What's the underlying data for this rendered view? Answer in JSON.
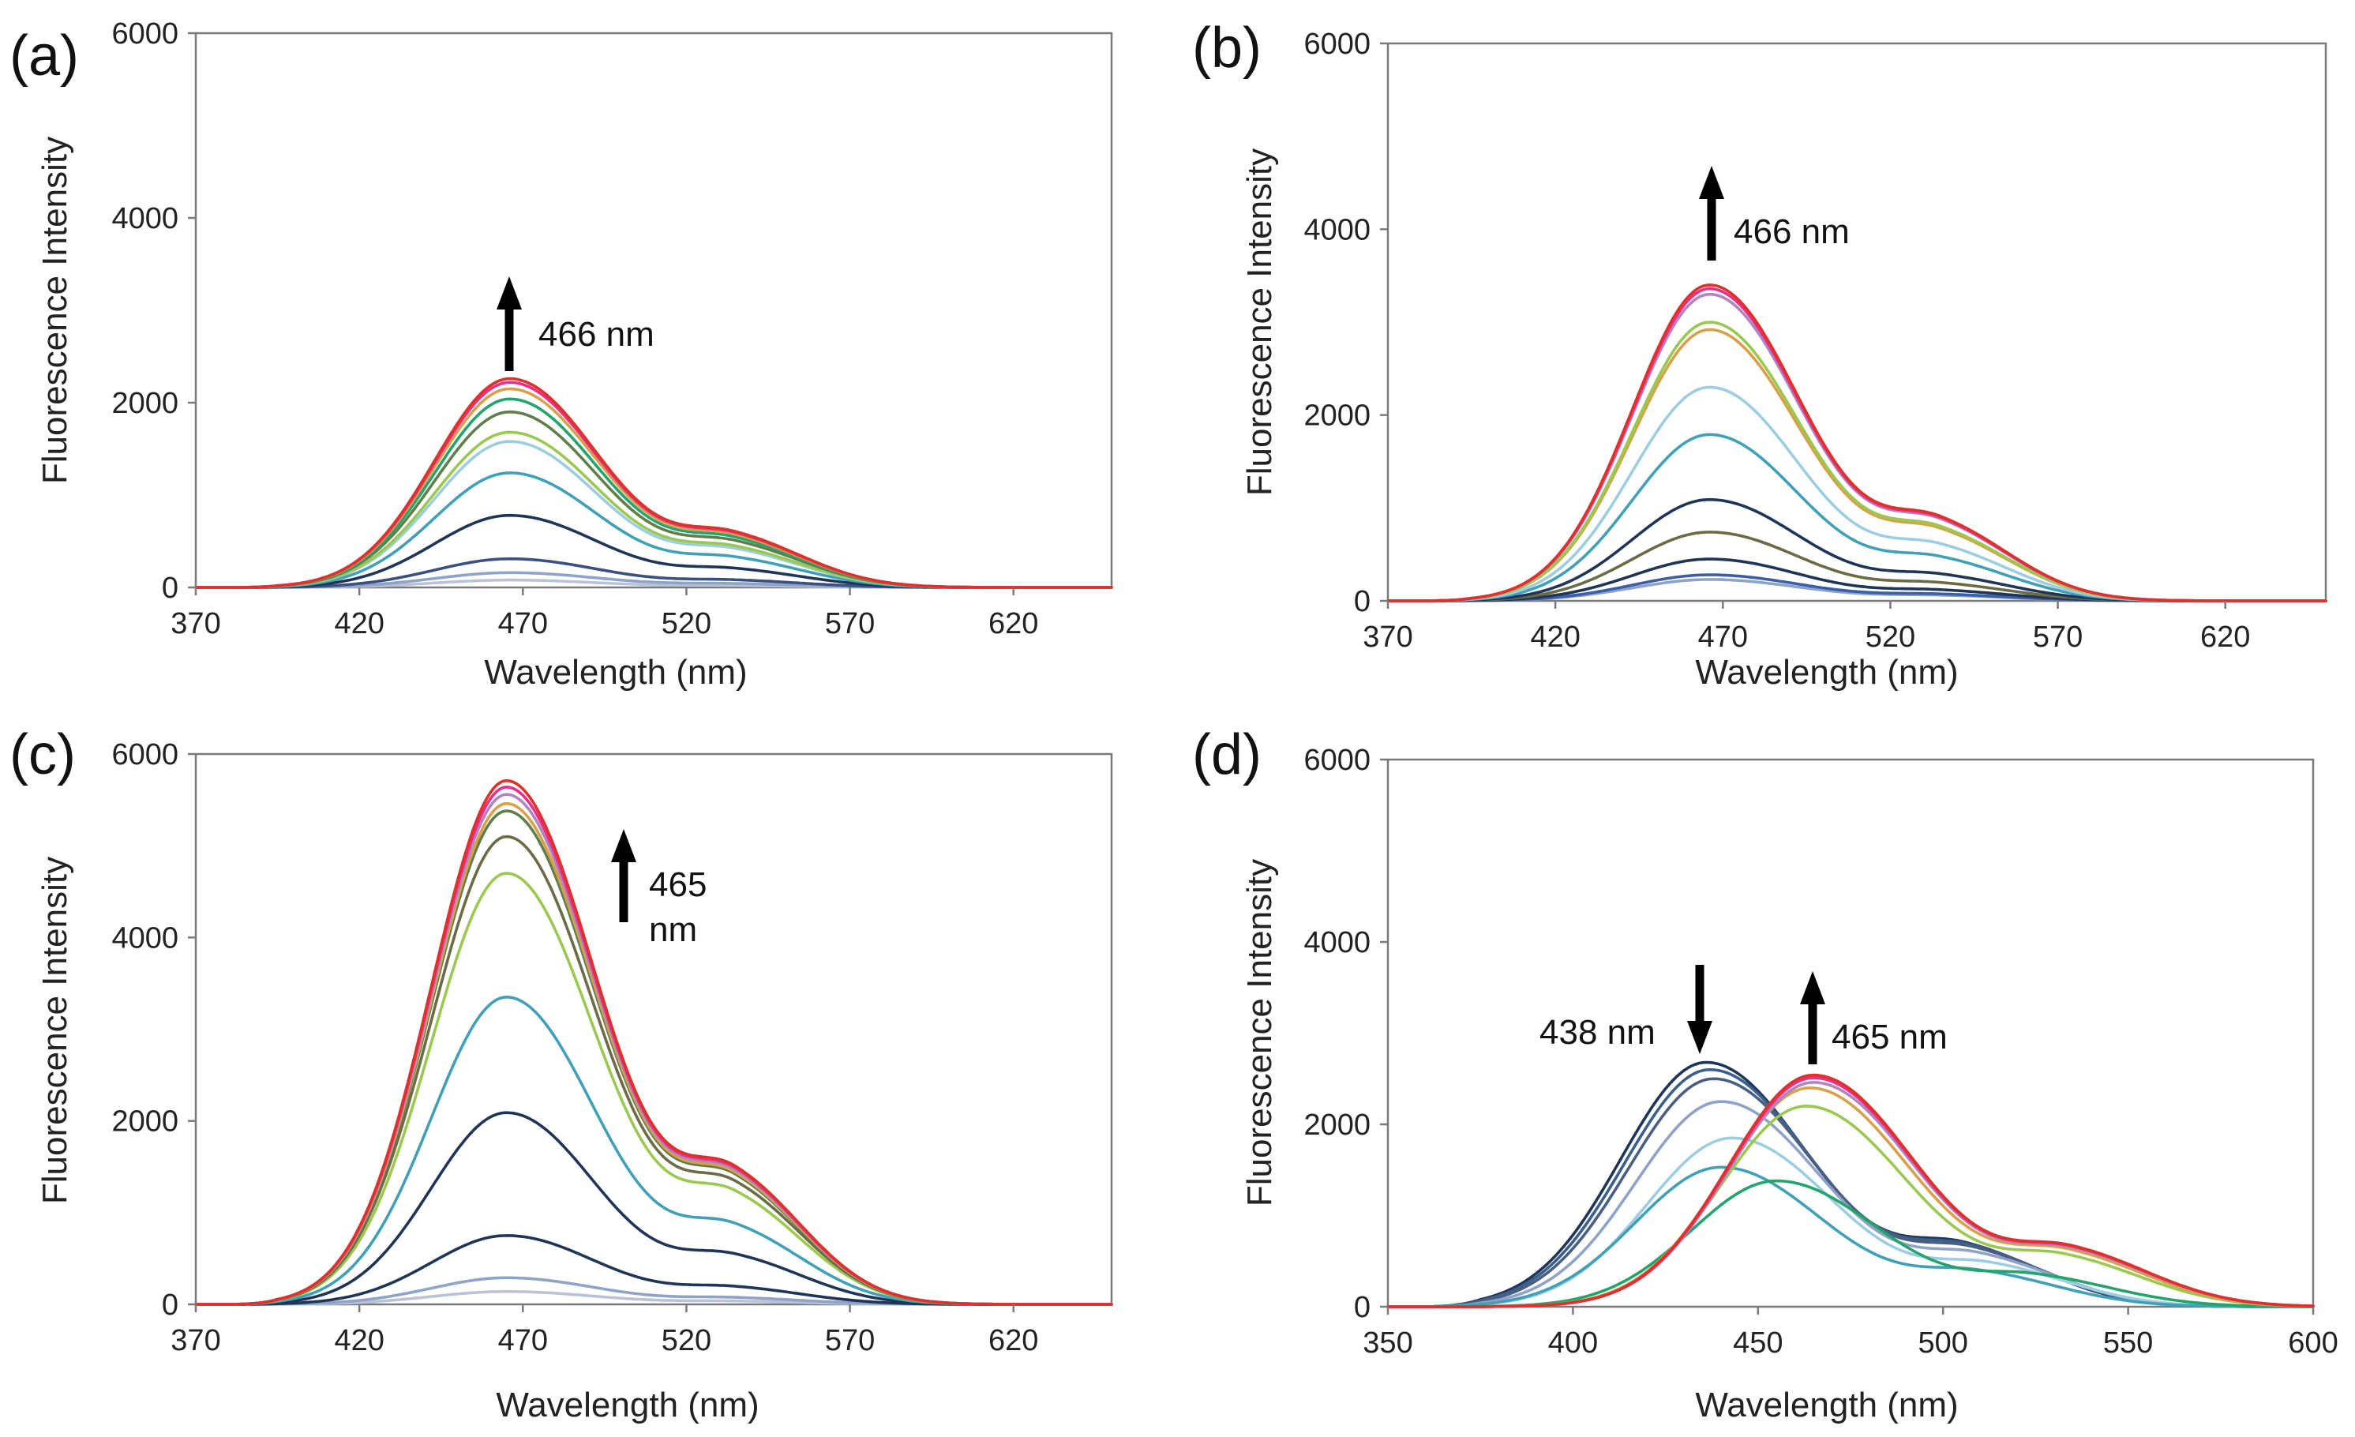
{
  "chart_data": [
    {
      "type": "line",
      "panel": "(a)",
      "xlabel": "Wavelength (nm)",
      "ylabel": "Fluorescence Intensity",
      "xlim": [
        370,
        650
      ],
      "ylim": [
        0,
        6000
      ],
      "xticks": [
        370,
        420,
        470,
        520,
        570,
        620
      ],
      "yticks": [
        0,
        2000,
        4000,
        6000
      ],
      "grid": false,
      "annotations": [
        {
          "text": "466 nm",
          "arrow": "up",
          "x": 467,
          "y": 2400
        }
      ],
      "curve_shape": {
        "onset": 395,
        "peak_x": 466,
        "shoulder_x": 535,
        "end": 630
      },
      "series": [
        {
          "name": "s1",
          "peak": 80,
          "color": "#b9c3d8"
        },
        {
          "name": "s2",
          "peak": 160,
          "color": "#8fa3c9"
        },
        {
          "name": "s3",
          "peak": 310,
          "color": "#3a5080"
        },
        {
          "name": "s4",
          "peak": 780,
          "color": "#1f3557"
        },
        {
          "name": "s5",
          "peak": 1240,
          "color": "#3fa0b8"
        },
        {
          "name": "s6",
          "peak": 1580,
          "color": "#9ccde0"
        },
        {
          "name": "s7",
          "peak": 1680,
          "color": "#9bc850"
        },
        {
          "name": "s8",
          "peak": 1900,
          "color": "#5f7f4a"
        },
        {
          "name": "s9",
          "peak": 2040,
          "color": "#23a46a"
        },
        {
          "name": "s10",
          "peak": 2150,
          "color": "#d9a04a"
        },
        {
          "name": "s11",
          "peak": 2220,
          "color": "#e8308a"
        },
        {
          "name": "s12",
          "peak": 2260,
          "color": "#e0302a"
        }
      ]
    },
    {
      "type": "line",
      "panel": "(b)",
      "xlabel": "Wavelength (nm)",
      "ylabel": "Fluorescence Intensity",
      "xlim": [
        370,
        650
      ],
      "ylim": [
        0,
        6000
      ],
      "xticks": [
        370,
        420,
        470,
        520,
        570,
        620
      ],
      "yticks": [
        0,
        2000,
        4000,
        6000
      ],
      "grid": false,
      "annotations": [
        {
          "text": "466 nm",
          "arrow": "up",
          "x": 466,
          "y": 3700
        }
      ],
      "curve_shape": {
        "onset": 395,
        "peak_x": 466,
        "shoulder_x": 535,
        "end": 630
      },
      "series": [
        {
          "name": "s1",
          "peak": 230,
          "color": "#8fa3c9"
        },
        {
          "name": "s2",
          "peak": 280,
          "color": "#3a5fa8"
        },
        {
          "name": "s3",
          "peak": 450,
          "color": "#1f3557"
        },
        {
          "name": "s4",
          "peak": 740,
          "color": "#6b6b45"
        },
        {
          "name": "s5",
          "peak": 1090,
          "color": "#1f3557"
        },
        {
          "name": "s6",
          "peak": 1790,
          "color": "#3fa0b8"
        },
        {
          "name": "s7",
          "peak": 2300,
          "color": "#9ccde0"
        },
        {
          "name": "s8",
          "peak": 2920,
          "color": "#d9a04a"
        },
        {
          "name": "s9",
          "peak": 3000,
          "color": "#9bc850"
        },
        {
          "name": "s10",
          "peak": 3300,
          "color": "#b085c0"
        },
        {
          "name": "s11",
          "peak": 3360,
          "color": "#e8308a"
        },
        {
          "name": "s12",
          "peak": 3400,
          "color": "#e0302a"
        }
      ]
    },
    {
      "type": "line",
      "panel": "(c)",
      "xlabel": "Wavelength (nm)",
      "ylabel": "Fluorescence Intensity",
      "xlim": [
        370,
        650
      ],
      "ylim": [
        0,
        6000
      ],
      "xticks": [
        370,
        420,
        470,
        520,
        570,
        620
      ],
      "yticks": [
        0,
        2000,
        4000,
        6000
      ],
      "grid": false,
      "annotations": [
        {
          "text_lines": [
            "465",
            "nm"
          ],
          "arrow": "up",
          "x": 490,
          "y": 4700
        }
      ],
      "curve_shape": {
        "onset": 395,
        "peak_x": 465,
        "shoulder_x": 535,
        "end": 630
      },
      "series": [
        {
          "name": "s1",
          "peak": 140,
          "color": "#b9c3d8"
        },
        {
          "name": "s2",
          "peak": 290,
          "color": "#8fa3c9"
        },
        {
          "name": "s3",
          "peak": 750,
          "color": "#1f3557"
        },
        {
          "name": "s4",
          "peak": 2090,
          "color": "#1f3557"
        },
        {
          "name": "s5",
          "peak": 3350,
          "color": "#3fa0b8"
        },
        {
          "name": "s6",
          "peak": 4700,
          "color": "#9bc850"
        },
        {
          "name": "s7",
          "peak": 5100,
          "color": "#6b6b45"
        },
        {
          "name": "s8",
          "peak": 5380,
          "color": "#5f7f4a"
        },
        {
          "name": "s9",
          "peak": 5460,
          "color": "#d9a04a"
        },
        {
          "name": "s10",
          "peak": 5560,
          "color": "#b085c0"
        },
        {
          "name": "s11",
          "peak": 5640,
          "color": "#e8308a"
        },
        {
          "name": "s12",
          "peak": 5710,
          "color": "#e0302a"
        }
      ]
    },
    {
      "type": "line",
      "panel": "(d)",
      "xlabel": "Wavelength (nm)",
      "ylabel": "Fluorescence Intensity",
      "xlim": [
        350,
        600
      ],
      "ylim": [
        0,
        6000
      ],
      "xticks": [
        350,
        400,
        450,
        500,
        550,
        600
      ],
      "yticks": [
        0,
        2000,
        4000,
        6000
      ],
      "grid": false,
      "annotations": [
        {
          "text": "438 nm",
          "arrow": "down",
          "x": 432,
          "y": 3700
        },
        {
          "text": "465 nm",
          "arrow": "up",
          "x": 465,
          "y": 3700
        }
      ],
      "series": [
        {
          "name": "s1",
          "peak_x": 436,
          "peak": 2680,
          "onset": 375,
          "end": 590,
          "color": "#1f3557"
        },
        {
          "name": "s2",
          "peak_x": 437,
          "peak": 2600,
          "onset": 375,
          "end": 590,
          "color": "#3a5f8a"
        },
        {
          "name": "s3",
          "peak_x": 438,
          "peak": 2500,
          "onset": 375,
          "end": 590,
          "color": "#4a5f80"
        },
        {
          "name": "s4",
          "peak_x": 440,
          "peak": 2250,
          "onset": 375,
          "end": 590,
          "color": "#8fa3c9"
        },
        {
          "name": "s5",
          "peak_x": 443,
          "peak": 1850,
          "onset": 375,
          "end": 590,
          "color": "#9ccde0"
        },
        {
          "name": "s6",
          "peak_x": 440,
          "peak": 1530,
          "onset": 375,
          "end": 590,
          "color": "#3fa0b8"
        },
        {
          "name": "s7",
          "peak_x": 455,
          "peak": 1380,
          "onset": 375,
          "end": 595,
          "color": "#23a46a"
        },
        {
          "name": "s8",
          "peak_x": 463,
          "peak": 2200,
          "onset": 378,
          "end": 600,
          "color": "#9bc850"
        },
        {
          "name": "s9",
          "peak_x": 464,
          "peak": 2400,
          "onset": 378,
          "end": 600,
          "color": "#d9a04a"
        },
        {
          "name": "s10",
          "peak_x": 465,
          "peak": 2460,
          "onset": 378,
          "end": 600,
          "color": "#b085c0"
        },
        {
          "name": "s11",
          "peak_x": 465,
          "peak": 2510,
          "onset": 378,
          "end": 600,
          "color": "#e8308a"
        },
        {
          "name": "s12",
          "peak_x": 465,
          "peak": 2540,
          "onset": 378,
          "end": 600,
          "color": "#e0302a"
        }
      ]
    }
  ]
}
